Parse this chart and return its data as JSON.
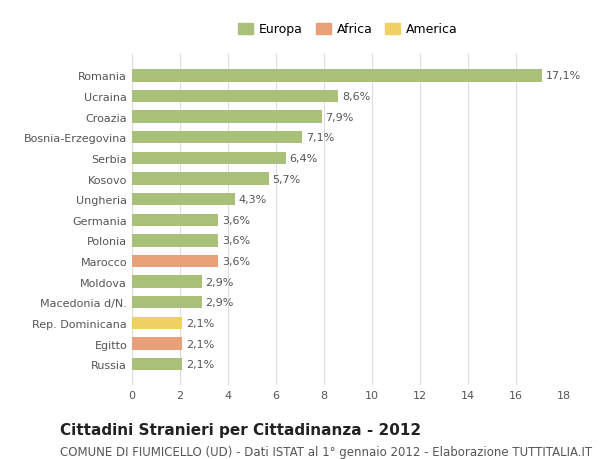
{
  "categories": [
    "Romania",
    "Ucraina",
    "Croazia",
    "Bosnia-Erzegovina",
    "Serbia",
    "Kosovo",
    "Ungheria",
    "Germania",
    "Polonia",
    "Marocco",
    "Moldova",
    "Macedonia d/N.",
    "Rep. Dominicana",
    "Egitto",
    "Russia"
  ],
  "values": [
    17.1,
    8.6,
    7.9,
    7.1,
    6.4,
    5.7,
    4.3,
    3.6,
    3.6,
    3.6,
    2.9,
    2.9,
    2.1,
    2.1,
    2.1
  ],
  "labels": [
    "17,1%",
    "8,6%",
    "7,9%",
    "7,1%",
    "6,4%",
    "5,7%",
    "4,3%",
    "3,6%",
    "3,6%",
    "3,6%",
    "2,9%",
    "2,9%",
    "2,1%",
    "2,1%",
    "2,1%"
  ],
  "continents": [
    "Europa",
    "Europa",
    "Europa",
    "Europa",
    "Europa",
    "Europa",
    "Europa",
    "Europa",
    "Europa",
    "Africa",
    "Europa",
    "Europa",
    "America",
    "Africa",
    "Europa"
  ],
  "colors": {
    "Europa": "#a8c07a",
    "Africa": "#e8a07a",
    "America": "#f0d060"
  },
  "legend_colors": {
    "Europa": "#a8c07a",
    "Africa": "#e8a07a",
    "America": "#f0d060"
  },
  "background_color": "#ffffff",
  "grid_color": "#dddddd",
  "bar_height": 0.6,
  "xlim": [
    0,
    18
  ],
  "xticks": [
    0,
    2,
    4,
    6,
    8,
    10,
    12,
    14,
    16,
    18
  ],
  "title": "Cittadini Stranieri per Cittadinanza - 2012",
  "subtitle": "COMUNE DI FIUMICELLO (UD) - Dati ISTAT al 1° gennaio 2012 - Elaborazione TUTTITALIA.IT",
  "title_fontsize": 11,
  "subtitle_fontsize": 8.5,
  "label_fontsize": 8,
  "tick_fontsize": 8,
  "legend_fontsize": 9
}
